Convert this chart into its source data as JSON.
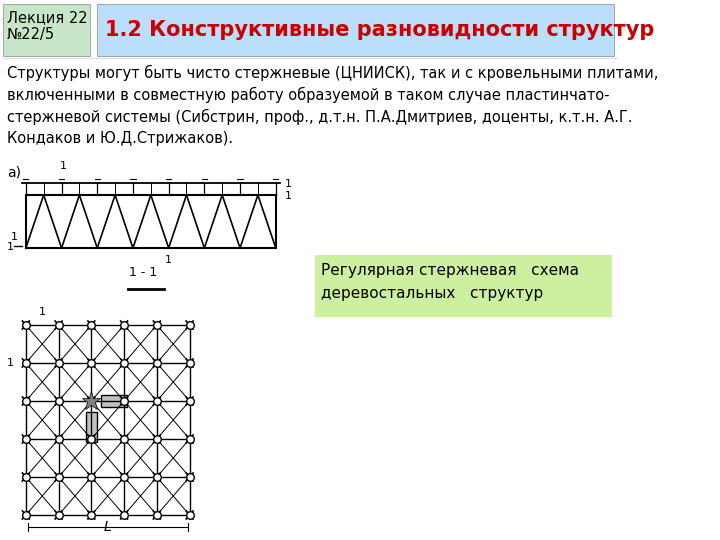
{
  "lecture_label": "Лекция 22\n№22/5",
  "title": "1.2 Конструктивные разновидности структур",
  "body_text": "Структуры могут быть чисто стержневые (ЦНИИСК), так и с кровельными плитами,\nвключенными в совместную работу образуемой в таком случае пластинчато-\nстержневой системы (Сибстрин, проф., д.т.н. П.А.Дмитриев, доценты, к.т.н. А.Г.\nКондаков и Ю.Д.Стрижаков).",
  "green_box_label": "Регулярная стержневая   схема\nдеревостальных   структур",
  "label_a": "а)",
  "bg_color": "#ffffff",
  "header_box_color": "#c8e6c9",
  "title_box_color": "#bbdefb",
  "title_color": "#cc0000",
  "green_note_color": "#ccf0a0",
  "lecture_text_color": "#000000",
  "body_text_color": "#000000",
  "title_fontsize": 15,
  "body_fontsize": 10.5,
  "lecture_fontsize": 10.5,
  "note_fontsize": 11
}
